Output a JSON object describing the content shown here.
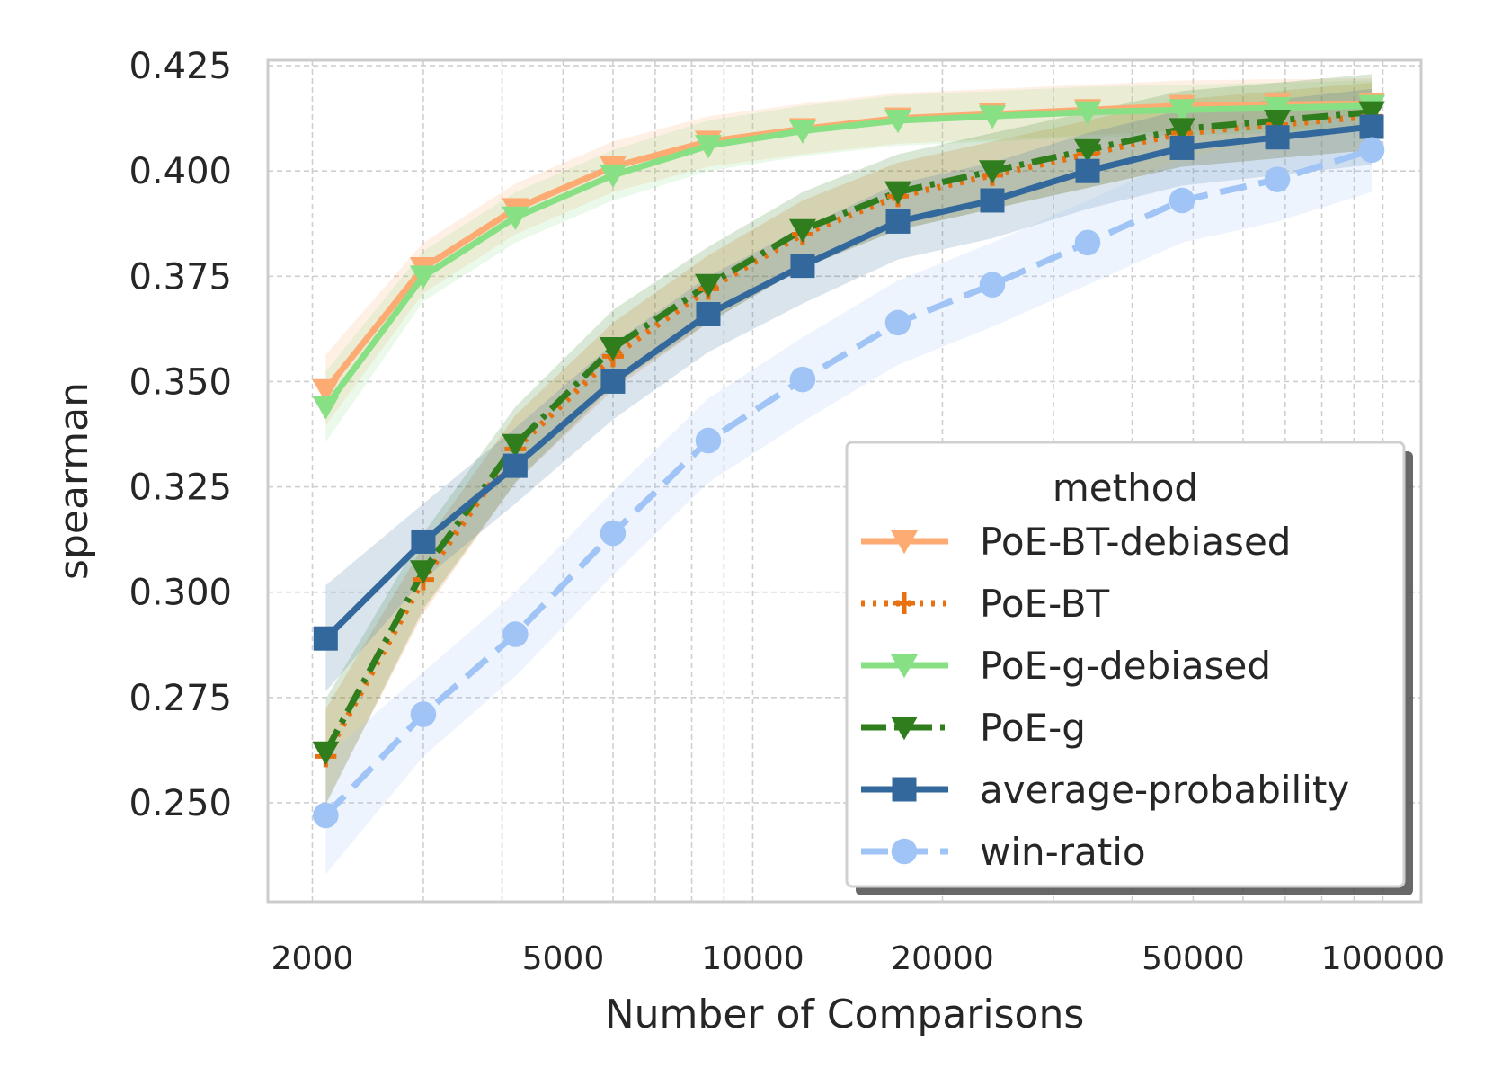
{
  "chart_data": {
    "type": "line",
    "xlabel": "Number of Comparisons",
    "ylabel": "spearman",
    "xscale": "log",
    "xlim": [
      1700,
      115000
    ],
    "ylim": [
      0.2265,
      0.4263
    ],
    "x_ticks": [
      2000,
      5000,
      10000,
      20000,
      50000,
      100000
    ],
    "y_ticks": [
      0.25,
      0.275,
      0.3,
      0.325,
      0.35,
      0.375,
      0.4,
      0.425
    ],
    "y_tick_labels": [
      "0.250",
      "0.275",
      "0.300",
      "0.325",
      "0.350",
      "0.375",
      "0.400",
      "0.425"
    ],
    "grid": true,
    "legend": {
      "title": "method",
      "position": "lower-right"
    },
    "x": [
      2100,
      3000,
      4200,
      6000,
      8500,
      12000,
      17000,
      24000,
      34000,
      48000,
      68000,
      96000
    ],
    "series": [
      {
        "name": "PoE-BT-debiased",
        "color": "#fdab72",
        "marker": "triangle-down",
        "dash": "solid",
        "values": [
          0.348,
          0.377,
          0.391,
          0.401,
          0.407,
          0.41,
          0.4125,
          0.4135,
          0.4145,
          0.4155,
          0.4158,
          0.416
        ],
        "band": 0.006
      },
      {
        "name": "PoE-BT",
        "color": "#e8700f",
        "marker": "plus",
        "dash": "dot",
        "values": [
          0.261,
          0.303,
          0.334,
          0.356,
          0.372,
          0.385,
          0.394,
          0.399,
          0.404,
          0.409,
          0.411,
          0.413
        ],
        "band": 0.008
      },
      {
        "name": "PoE-g-debiased",
        "color": "#88e085",
        "marker": "triangle-down",
        "dash": "solid",
        "values": [
          0.344,
          0.375,
          0.389,
          0.399,
          0.406,
          0.4095,
          0.412,
          0.413,
          0.414,
          0.4145,
          0.415,
          0.4155
        ],
        "band": 0.006
      },
      {
        "name": "PoE-g",
        "color": "#2f7d1d",
        "marker": "triangle-down",
        "dash": "dashdot",
        "values": [
          0.262,
          0.305,
          0.335,
          0.358,
          0.373,
          0.386,
          0.395,
          0.4,
          0.405,
          0.41,
          0.412,
          0.414
        ],
        "band": 0.009
      },
      {
        "name": "average-probability",
        "color": "#33689c",
        "marker": "square",
        "dash": "solid",
        "values": [
          0.289,
          0.312,
          0.33,
          0.35,
          0.366,
          0.3775,
          0.388,
          0.393,
          0.4,
          0.4055,
          0.408,
          0.4105
        ],
        "band": 0.009
      },
      {
        "name": "win-ratio",
        "color": "#9fc4f5",
        "marker": "circle",
        "dash": "dashed",
        "values": [
          0.247,
          0.271,
          0.29,
          0.314,
          0.336,
          0.3505,
          0.364,
          0.373,
          0.383,
          0.393,
          0.398,
          0.405
        ],
        "band": 0.01
      }
    ]
  }
}
